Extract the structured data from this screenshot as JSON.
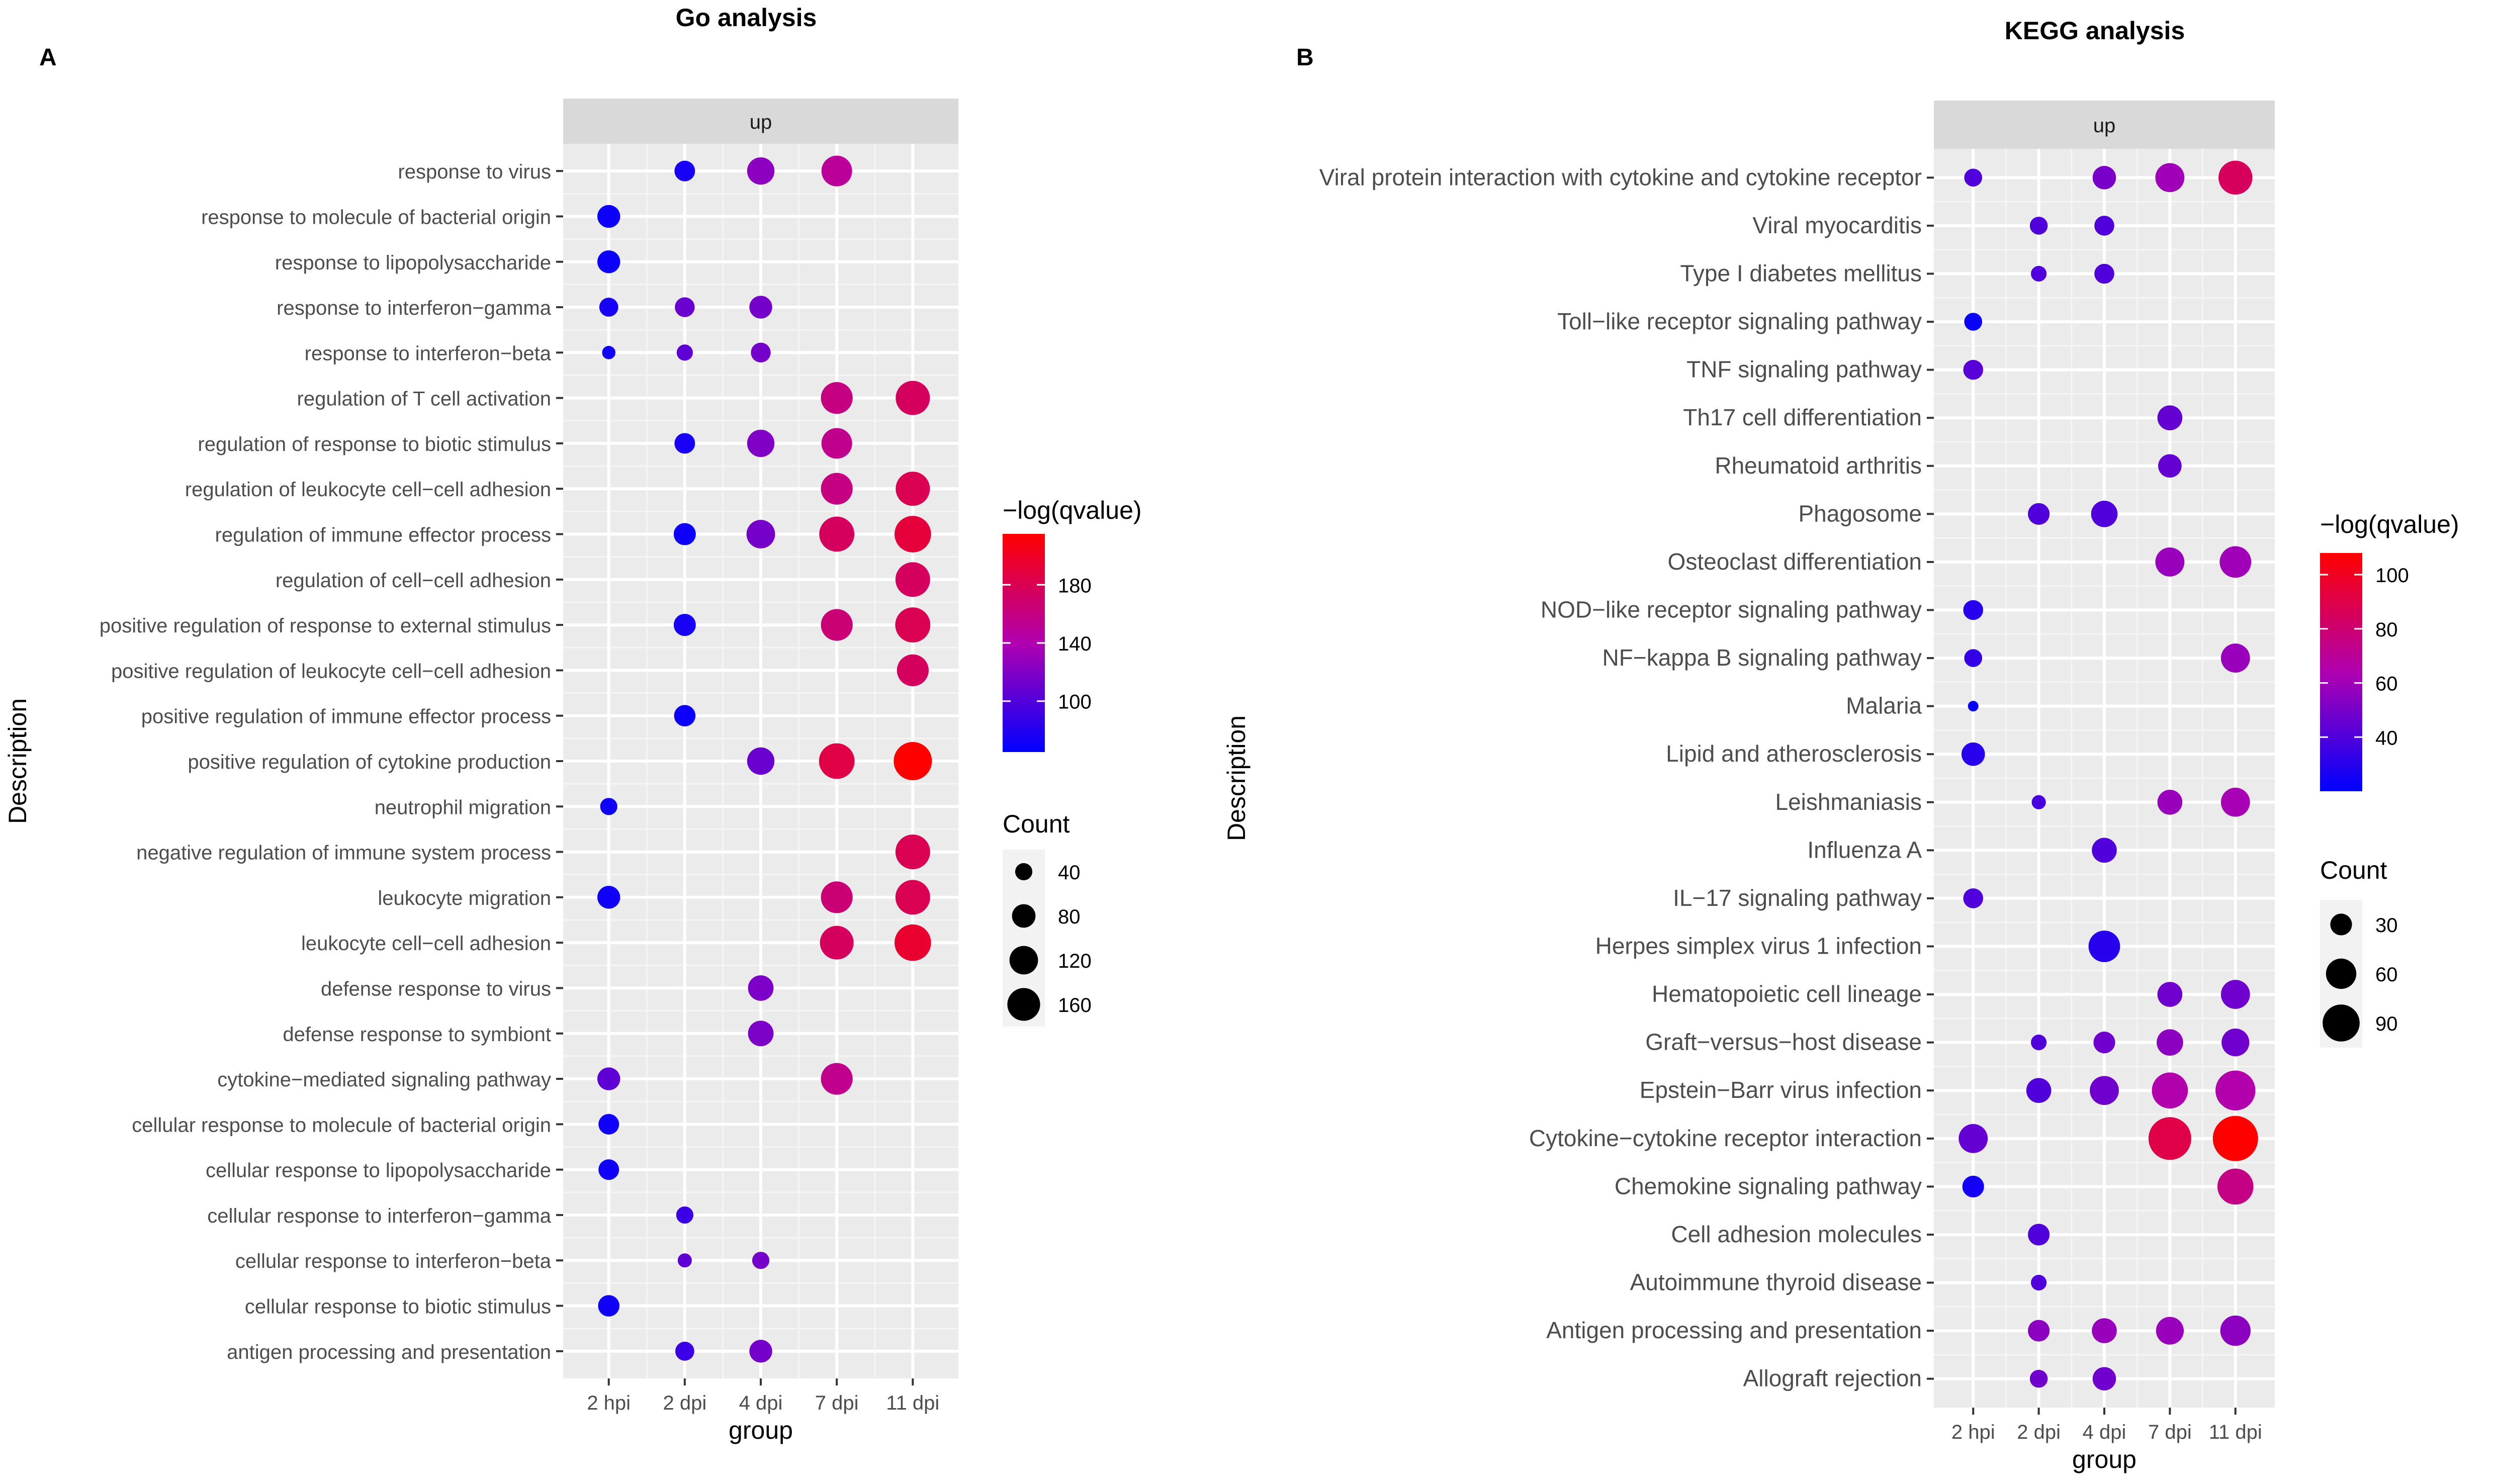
{
  "figure_labels": {
    "a": "A",
    "b": "B"
  },
  "chart_data": [
    {
      "type": "scatter",
      "title": "Go  analysis",
      "panel": "A",
      "strip": "up",
      "xlabel": "group",
      "ylabel": "Description",
      "groups": [
        "2 hpi",
        "2 dpi",
        "4 dpi",
        "7 dpi",
        "11 dpi"
      ],
      "terms": [
        "response to virus",
        "response to molecule of bacterial origin",
        "response to lipopolysaccharide",
        "response to interferon−gamma",
        "response to interferon−beta",
        "regulation of T cell activation",
        "regulation of response to biotic stimulus",
        "regulation of leukocyte cell−cell adhesion",
        "regulation of immune effector process",
        "regulation of cell−cell adhesion",
        "positive regulation of response to external stimulus",
        "positive regulation of leukocyte cell−cell adhesion",
        "positive regulation of immune effector process",
        "positive regulation of cytokine production",
        "neutrophil migration",
        "negative regulation of immune system process",
        "leukocyte migration",
        "leukocyte cell−cell adhesion",
        "defense response to virus",
        "defense response to symbiont",
        "cytokine−mediated signaling pathway",
        "cellular response to molecule of bacterial origin",
        "cellular response to lipopolysaccharide",
        "cellular response to interferon−gamma",
        "cellular response to interferon−beta",
        "cellular response to biotic stimulus",
        "antigen processing and presentation"
      ],
      "points": [
        {
          "term": 0,
          "group": 1,
          "count": 60,
          "q": 75
        },
        {
          "term": 0,
          "group": 2,
          "count": 110,
          "q": 125
        },
        {
          "term": 0,
          "group": 3,
          "count": 140,
          "q": 150
        },
        {
          "term": 1,
          "group": 0,
          "count": 75,
          "q": 70
        },
        {
          "term": 2,
          "group": 0,
          "count": 75,
          "q": 70
        },
        {
          "term": 3,
          "group": 0,
          "count": 50,
          "q": 75
        },
        {
          "term": 3,
          "group": 1,
          "count": 55,
          "q": 110
        },
        {
          "term": 3,
          "group": 2,
          "count": 75,
          "q": 115
        },
        {
          "term": 4,
          "group": 0,
          "count": 22,
          "q": 72
        },
        {
          "term": 4,
          "group": 1,
          "count": 35,
          "q": 105
        },
        {
          "term": 4,
          "group": 2,
          "count": 55,
          "q": 115
        },
        {
          "term": 5,
          "group": 3,
          "count": 150,
          "q": 160
        },
        {
          "term": 5,
          "group": 4,
          "count": 175,
          "q": 175
        },
        {
          "term": 6,
          "group": 1,
          "count": 60,
          "q": 75
        },
        {
          "term": 6,
          "group": 2,
          "count": 110,
          "q": 120
        },
        {
          "term": 6,
          "group": 3,
          "count": 140,
          "q": 155
        },
        {
          "term": 7,
          "group": 3,
          "count": 150,
          "q": 160
        },
        {
          "term": 7,
          "group": 4,
          "count": 175,
          "q": 180
        },
        {
          "term": 8,
          "group": 1,
          "count": 70,
          "q": 70
        },
        {
          "term": 8,
          "group": 2,
          "count": 120,
          "q": 115
        },
        {
          "term": 8,
          "group": 3,
          "count": 185,
          "q": 175
        },
        {
          "term": 8,
          "group": 4,
          "count": 200,
          "q": 190
        },
        {
          "term": 9,
          "group": 4,
          "count": 180,
          "q": 175
        },
        {
          "term": 10,
          "group": 1,
          "count": 70,
          "q": 75
        },
        {
          "term": 10,
          "group": 3,
          "count": 150,
          "q": 165
        },
        {
          "term": 10,
          "group": 4,
          "count": 185,
          "q": 180
        },
        {
          "term": 11,
          "group": 4,
          "count": 150,
          "q": 175
        },
        {
          "term": 12,
          "group": 1,
          "count": 65,
          "q": 70
        },
        {
          "term": 13,
          "group": 2,
          "count": 110,
          "q": 110
        },
        {
          "term": 13,
          "group": 3,
          "count": 190,
          "q": 185
        },
        {
          "term": 13,
          "group": 4,
          "count": 220,
          "q": 215
        },
        {
          "term": 14,
          "group": 0,
          "count": 40,
          "q": 72
        },
        {
          "term": 15,
          "group": 4,
          "count": 180,
          "q": 180
        },
        {
          "term": 16,
          "group": 0,
          "count": 75,
          "q": 72
        },
        {
          "term": 16,
          "group": 3,
          "count": 150,
          "q": 165
        },
        {
          "term": 16,
          "group": 4,
          "count": 180,
          "q": 180
        },
        {
          "term": 17,
          "group": 3,
          "count": 170,
          "q": 175
        },
        {
          "term": 17,
          "group": 4,
          "count": 200,
          "q": 195
        },
        {
          "term": 18,
          "group": 2,
          "count": 95,
          "q": 118
        },
        {
          "term": 19,
          "group": 2,
          "count": 95,
          "q": 118
        },
        {
          "term": 20,
          "group": 0,
          "count": 75,
          "q": 105
        },
        {
          "term": 20,
          "group": 3,
          "count": 150,
          "q": 155
        },
        {
          "term": 21,
          "group": 0,
          "count": 60,
          "q": 72
        },
        {
          "term": 22,
          "group": 0,
          "count": 60,
          "q": 72
        },
        {
          "term": 23,
          "group": 1,
          "count": 40,
          "q": 90
        },
        {
          "term": 24,
          "group": 1,
          "count": 25,
          "q": 105
        },
        {
          "term": 24,
          "group": 2,
          "count": 40,
          "q": 115
        },
        {
          "term": 25,
          "group": 0,
          "count": 65,
          "q": 72
        },
        {
          "term": 26,
          "group": 1,
          "count": 50,
          "q": 90
        },
        {
          "term": 26,
          "group": 2,
          "count": 75,
          "q": 115
        }
      ],
      "color_legend": {
        "title": "−log(qvalue)",
        "min": 65,
        "max": 215,
        "ticks": [
          100,
          140,
          180
        ],
        "low_color": "#0000ff",
        "mid_color": "#b000b0",
        "high_color": "#ff0000"
      },
      "size_legend": {
        "title": "Count",
        "min": 10,
        "max": 220,
        "breaks": [
          40,
          80,
          120,
          160
        ]
      }
    },
    {
      "type": "scatter",
      "title": "KEGG analysis",
      "panel": "B",
      "strip": "up",
      "xlabel": "group",
      "ylabel": "Description",
      "groups": [
        "2 hpi",
        "2 dpi",
        "4 dpi",
        "7 dpi",
        "11 dpi"
      ],
      "terms": [
        "Viral protein interaction with cytokine and cytokine receptor",
        "Viral myocarditis",
        "Type I diabetes mellitus",
        "Toll−like receptor signaling pathway",
        "TNF signaling pathway",
        "Th17 cell differentiation",
        "Rheumatoid arthritis",
        "Phagosome",
        "Osteoclast differentiation",
        "NOD−like receptor signaling pathway",
        "NF−kappa B signaling pathway",
        "Malaria",
        "Lipid and atherosclerosis",
        "Leishmaniasis",
        "Influenza A",
        "IL−17 signaling pathway",
        "Herpes simplex virus 1 infection",
        "Hematopoietic cell lineage",
        "Graft−versus−host disease",
        "Epstein−Barr virus infection",
        "Cytokine−cytokine receptor interaction",
        "Chemokine signaling pathway",
        "Cell adhesion molecules",
        "Autoimmune thyroid disease",
        "Antigen processing and presentation",
        "Allograft rejection"
      ],
      "points": [
        {
          "term": 0,
          "group": 0,
          "count": 20,
          "q": 40
        },
        {
          "term": 0,
          "group": 2,
          "count": 35,
          "q": 50
        },
        {
          "term": 0,
          "group": 3,
          "count": 55,
          "q": 60
        },
        {
          "term": 0,
          "group": 4,
          "count": 75,
          "q": 85
        },
        {
          "term": 1,
          "group": 1,
          "count": 20,
          "q": 40
        },
        {
          "term": 1,
          "group": 2,
          "count": 25,
          "q": 40
        },
        {
          "term": 2,
          "group": 1,
          "count": 15,
          "q": 40
        },
        {
          "term": 2,
          "group": 2,
          "count": 25,
          "q": 40
        },
        {
          "term": 3,
          "group": 0,
          "count": 20,
          "q": 22
        },
        {
          "term": 4,
          "group": 0,
          "count": 25,
          "q": 42
        },
        {
          "term": 5,
          "group": 3,
          "count": 40,
          "q": 45
        },
        {
          "term": 6,
          "group": 3,
          "count": 35,
          "q": 45
        },
        {
          "term": 7,
          "group": 1,
          "count": 30,
          "q": 40
        },
        {
          "term": 7,
          "group": 2,
          "count": 45,
          "q": 40
        },
        {
          "term": 8,
          "group": 3,
          "count": 55,
          "q": 58
        },
        {
          "term": 8,
          "group": 4,
          "count": 65,
          "q": 60
        },
        {
          "term": 9,
          "group": 0,
          "count": 25,
          "q": 30
        },
        {
          "term": 10,
          "group": 0,
          "count": 20,
          "q": 33
        },
        {
          "term": 10,
          "group": 4,
          "count": 55,
          "q": 58
        },
        {
          "term": 11,
          "group": 0,
          "count": 6,
          "q": 22
        },
        {
          "term": 12,
          "group": 0,
          "count": 35,
          "q": 30
        },
        {
          "term": 13,
          "group": 1,
          "count": 12,
          "q": 38
        },
        {
          "term": 13,
          "group": 3,
          "count": 40,
          "q": 58
        },
        {
          "term": 13,
          "group": 4,
          "count": 55,
          "q": 62
        },
        {
          "term": 14,
          "group": 2,
          "count": 40,
          "q": 40
        },
        {
          "term": 15,
          "group": 0,
          "count": 25,
          "q": 40
        },
        {
          "term": 16,
          "group": 2,
          "count": 65,
          "q": 30
        },
        {
          "term": 17,
          "group": 3,
          "count": 40,
          "q": 48
        },
        {
          "term": 17,
          "group": 4,
          "count": 55,
          "q": 48
        },
        {
          "term": 18,
          "group": 1,
          "count": 15,
          "q": 40
        },
        {
          "term": 18,
          "group": 2,
          "count": 30,
          "q": 48
        },
        {
          "term": 18,
          "group": 3,
          "count": 45,
          "q": 55
        },
        {
          "term": 18,
          "group": 4,
          "count": 50,
          "q": 48
        },
        {
          "term": 19,
          "group": 1,
          "count": 40,
          "q": 40
        },
        {
          "term": 19,
          "group": 2,
          "count": 55,
          "q": 48
        },
        {
          "term": 19,
          "group": 3,
          "count": 85,
          "q": 65
        },
        {
          "term": 19,
          "group": 4,
          "count": 105,
          "q": 65
        },
        {
          "term": 20,
          "group": 0,
          "count": 55,
          "q": 45
        },
        {
          "term": 20,
          "group": 3,
          "count": 120,
          "q": 90
        },
        {
          "term": 20,
          "group": 4,
          "count": 135,
          "q": 108
        },
        {
          "term": 21,
          "group": 0,
          "count": 30,
          "q": 25
        },
        {
          "term": 21,
          "group": 4,
          "count": 85,
          "q": 75
        },
        {
          "term": 22,
          "group": 1,
          "count": 30,
          "q": 40
        },
        {
          "term": 23,
          "group": 1,
          "count": 15,
          "q": 40
        },
        {
          "term": 24,
          "group": 1,
          "count": 30,
          "q": 55
        },
        {
          "term": 24,
          "group": 2,
          "count": 40,
          "q": 58
        },
        {
          "term": 24,
          "group": 3,
          "count": 50,
          "q": 58
        },
        {
          "term": 24,
          "group": 4,
          "count": 60,
          "q": 55
        },
        {
          "term": 25,
          "group": 1,
          "count": 20,
          "q": 48
        },
        {
          "term": 25,
          "group": 2,
          "count": 35,
          "q": 48
        }
      ],
      "color_legend": {
        "title": "−log(qvalue)",
        "min": 20,
        "max": 108,
        "ticks": [
          40,
          60,
          80,
          100
        ],
        "low_color": "#0000ff",
        "mid_color": "#b000b0",
        "high_color": "#ff0000"
      },
      "size_legend": {
        "title": "Count",
        "min": 4,
        "max": 135,
        "breaks": [
          30,
          60,
          90
        ]
      }
    }
  ]
}
